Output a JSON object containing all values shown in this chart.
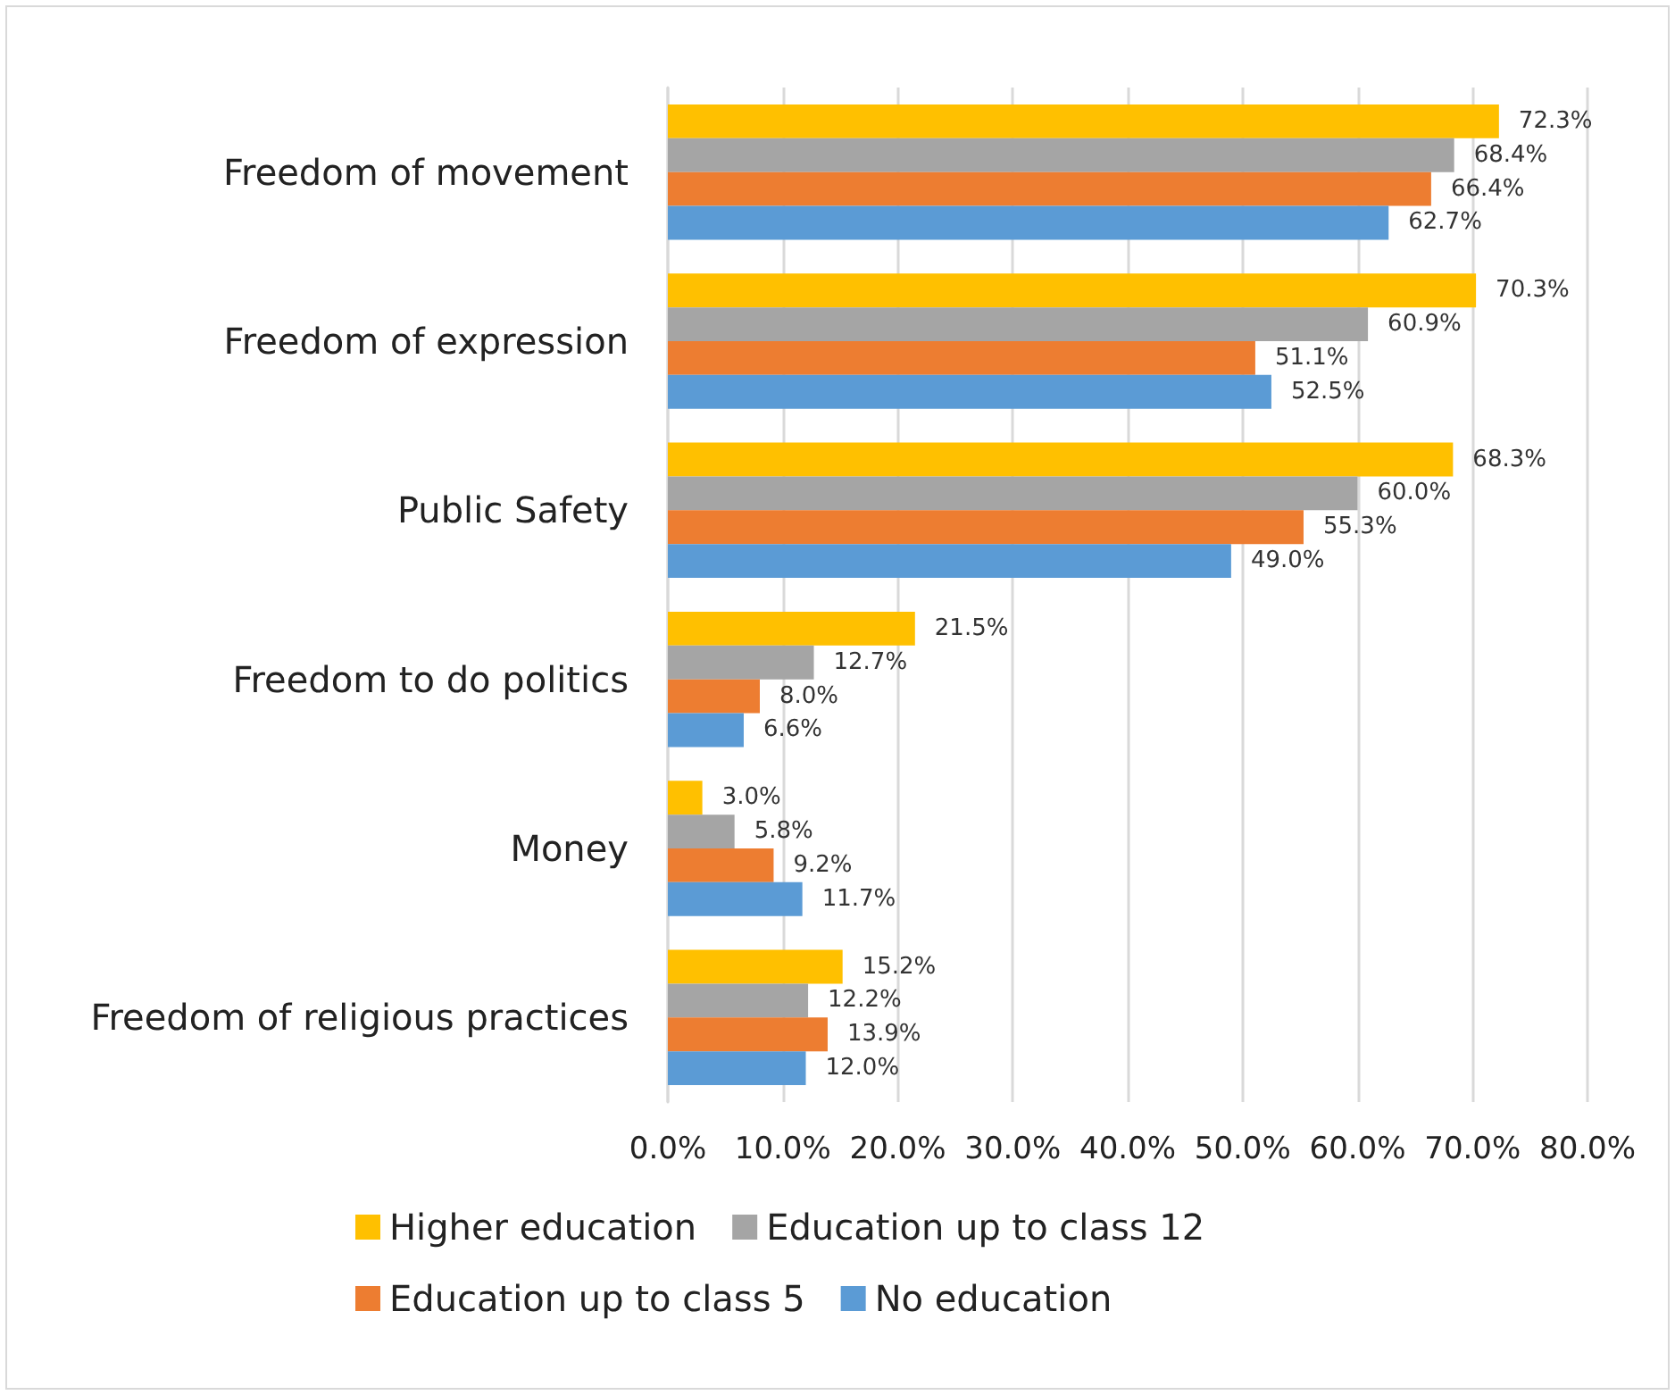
{
  "chart_data": {
    "type": "bar",
    "orientation": "horizontal",
    "categories": [
      "Freedom of movement",
      "Freedom of expression",
      "Public Safety",
      "Freedom to do politics",
      "Money",
      "Freedom of religious practices"
    ],
    "series": [
      {
        "name": "Higher education",
        "color": "#ffc000",
        "values": [
          72.3,
          70.3,
          68.3,
          21.5,
          3.0,
          15.2
        ],
        "value_labels": [
          "72.3%",
          "70.3%",
          "68.3%",
          "21.5%",
          "3.0%",
          "15.2%"
        ]
      },
      {
        "name": "Education up to class 12",
        "color": "#a5a5a5",
        "values": [
          68.4,
          60.9,
          60.0,
          12.7,
          5.8,
          12.2
        ],
        "value_labels": [
          "68.4%",
          "60.9%",
          "60.0%",
          "12.7%",
          "5.8%",
          "12.2%"
        ]
      },
      {
        "name": "Education up to class 5",
        "color": "#ed7d31",
        "values": [
          66.4,
          51.1,
          55.3,
          8.0,
          9.2,
          13.9
        ],
        "value_labels": [
          "66.4%",
          "51.1%",
          "55.3%",
          "8.0%",
          "9.2%",
          "13.9%"
        ]
      },
      {
        "name": "No education",
        "color": "#5b9bd5",
        "values": [
          62.7,
          52.5,
          49.0,
          6.6,
          11.7,
          12.0
        ],
        "value_labels": [
          "62.7%",
          "52.5%",
          "49.0%",
          "6.6%",
          "11.7%",
          "12.0%"
        ]
      }
    ],
    "xlim": [
      0,
      80
    ],
    "xticks": [
      {
        "value": 0,
        "label": "0.0%"
      },
      {
        "value": 10,
        "label": "10.0%"
      },
      {
        "value": 20,
        "label": "20.0%"
      },
      {
        "value": 30,
        "label": "30.0%"
      },
      {
        "value": 40,
        "label": "40.0%"
      },
      {
        "value": 50,
        "label": "50.0%"
      },
      {
        "value": 60,
        "label": "60.0%"
      },
      {
        "value": 70,
        "label": "70.0%"
      },
      {
        "value": 80,
        "label": "80.0%"
      }
    ],
    "grid": "x",
    "legend": "bottom"
  }
}
